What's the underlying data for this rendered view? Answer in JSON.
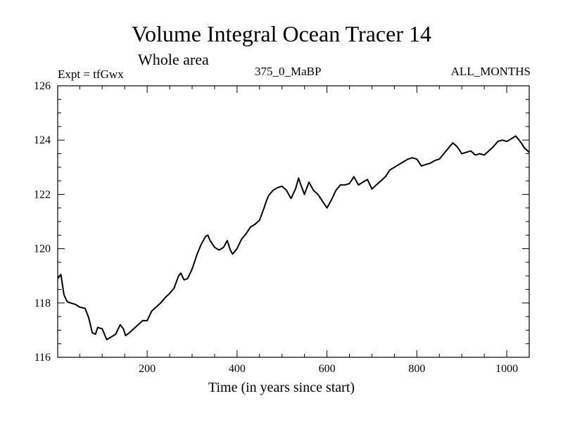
{
  "chart_data": {
    "type": "line",
    "title": "Volume Integral Ocean Tracer 14",
    "subtitle": "Whole area",
    "annotations": {
      "left": "Expt = tfGwx",
      "center": "375_0_MaBP",
      "right": "ALL_MONTHS"
    },
    "xlabel": "Time (in years since start)",
    "ylabel": "",
    "xlim": [
      1,
      1050
    ],
    "ylim": [
      116,
      126
    ],
    "xticks": [
      200,
      400,
      600,
      800,
      1000
    ],
    "yticks": [
      116,
      118,
      120,
      122,
      124,
      126
    ],
    "grid": false,
    "series": [
      {
        "name": "Volume Integral Ocean Tracer 14",
        "x": [
          1,
          8,
          15,
          22,
          30,
          40,
          50,
          62,
          70,
          78,
          85,
          90,
          100,
          110,
          120,
          130,
          140,
          147,
          152,
          160,
          170,
          180,
          190,
          200,
          210,
          220,
          230,
          240,
          250,
          260,
          270,
          275,
          282,
          290,
          300,
          310,
          320,
          330,
          335,
          340,
          350,
          360,
          370,
          378,
          385,
          390,
          400,
          410,
          420,
          430,
          440,
          450,
          460,
          465,
          470,
          480,
          490,
          500,
          510,
          520,
          530,
          537,
          542,
          550,
          560,
          570,
          580,
          590,
          600,
          610,
          620,
          630,
          640,
          650,
          660,
          670,
          680,
          690,
          700,
          710,
          720,
          730,
          740,
          750,
          760,
          770,
          780,
          790,
          800,
          810,
          820,
          830,
          840,
          850,
          860,
          870,
          880,
          890,
          900,
          910,
          920,
          930,
          940,
          950,
          960,
          970,
          980,
          990,
          1000,
          1010,
          1020,
          1030,
          1040,
          1050
        ],
        "values": [
          118.9,
          119.05,
          118.3,
          118.05,
          118.0,
          117.95,
          117.85,
          117.8,
          117.45,
          116.9,
          116.85,
          117.1,
          117.05,
          116.65,
          116.75,
          116.85,
          117.2,
          117.05,
          116.8,
          116.9,
          117.05,
          117.2,
          117.35,
          117.35,
          117.7,
          117.85,
          118.0,
          118.2,
          118.35,
          118.55,
          119.0,
          119.1,
          118.85,
          118.9,
          119.25,
          119.75,
          120.15,
          120.45,
          120.5,
          120.3,
          120.05,
          119.95,
          120.05,
          120.3,
          119.95,
          119.8,
          120.0,
          120.35,
          120.55,
          120.8,
          120.9,
          121.05,
          121.5,
          121.75,
          121.95,
          122.15,
          122.25,
          122.3,
          122.15,
          121.85,
          122.2,
          122.6,
          122.35,
          122.0,
          122.45,
          122.15,
          122.0,
          121.75,
          121.5,
          121.8,
          122.15,
          122.35,
          122.35,
          122.4,
          122.65,
          122.35,
          122.45,
          122.55,
          122.2,
          122.35,
          122.5,
          122.65,
          122.9,
          123.0,
          123.1,
          123.2,
          123.3,
          123.35,
          123.3,
          123.05,
          123.1,
          123.15,
          123.25,
          123.3,
          123.5,
          123.7,
          123.9,
          123.75,
          123.5,
          123.55,
          123.6,
          123.45,
          123.5,
          123.45,
          123.6,
          123.75,
          123.95,
          124.0,
          123.95,
          124.05,
          124.15,
          123.95,
          123.7,
          123.55
        ]
      }
    ]
  }
}
